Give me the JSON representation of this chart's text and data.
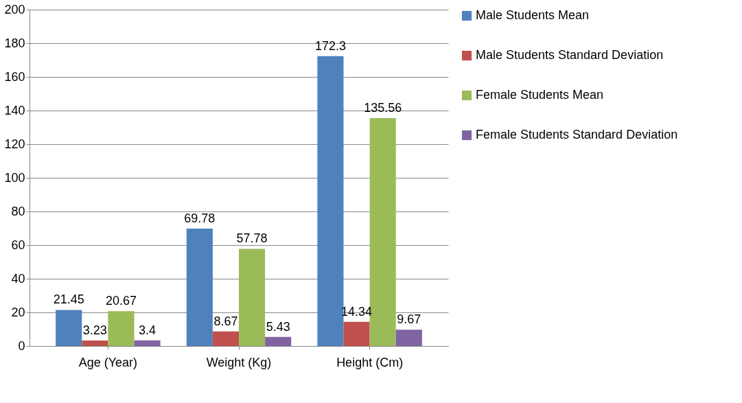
{
  "chart_data": {
    "type": "bar",
    "categories": [
      "Age (Year)",
      "Weight (Kg)",
      "Height (Cm)"
    ],
    "series": [
      {
        "name": "Male Students Mean",
        "color": "#4f81bd",
        "values": [
          21.45,
          69.78,
          172.3
        ]
      },
      {
        "name": "Male Students Standard Deviation",
        "color": "#c0504d",
        "values": [
          3.23,
          8.67,
          14.34
        ]
      },
      {
        "name": "Female  Students Mean",
        "color": "#9bbb59",
        "values": [
          20.67,
          57.78,
          135.56
        ]
      },
      {
        "name": "Female  Students Standard Deviation",
        "color": "#8064a2",
        "values": [
          3.4,
          5.43,
          9.67
        ]
      }
    ],
    "ylim": [
      0,
      200
    ],
    "yticks": [
      0,
      20,
      40,
      60,
      80,
      100,
      120,
      140,
      160,
      180,
      200
    ],
    "grid": "y",
    "legend": "right",
    "data_labels": true
  }
}
